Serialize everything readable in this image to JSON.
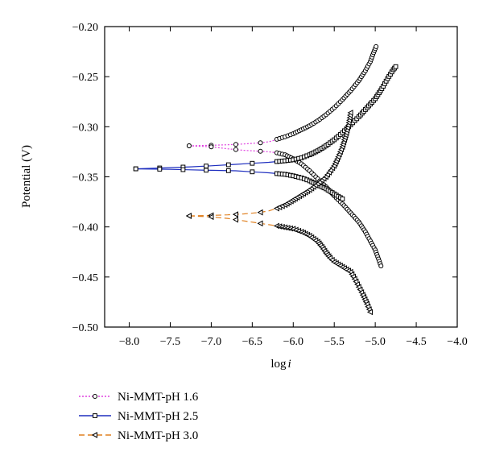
{
  "chart_data": {
    "type": "scatter",
    "title": "",
    "xlabel": "log i",
    "ylabel": "Potential (V)",
    "xlim": [
      -8.3,
      -4.0
    ],
    "ylim": [
      -0.5,
      -0.2
    ],
    "xticks": [
      "−8.0",
      "−7.5",
      "−7.0",
      "−6.5",
      "−6.0",
      "−5.5",
      "−5.0",
      "−4.5",
      "−4.0"
    ],
    "xtick_values": [
      -8.0,
      -7.5,
      -7.0,
      -6.5,
      -6.0,
      -5.5,
      -5.0,
      -4.5,
      -4.0
    ],
    "yticks": [
      "−0.20",
      "−0.25",
      "−0.30",
      "−0.35",
      "−0.40",
      "−0.45",
      "−0.50"
    ],
    "ytick_values": [
      -0.2,
      -0.25,
      -0.3,
      -0.35,
      -0.4,
      -0.45,
      -0.5
    ],
    "grid": false,
    "legend_position": "bottom-left, below plot",
    "series": [
      {
        "name": "Ni-MMT-pH 1.6",
        "color": "#e040e0",
        "line_style": "dotted",
        "marker": "circle",
        "corrosion_point": [
          -7.27,
          -0.319
        ],
        "anodic": [
          [
            -7.27,
            -0.319
          ],
          [
            -7.0,
            -0.3185
          ],
          [
            -6.8,
            -0.318
          ],
          [
            -6.6,
            -0.3172
          ],
          [
            -6.4,
            -0.316
          ],
          [
            -6.3,
            -0.315
          ],
          [
            -6.25,
            -0.314
          ],
          [
            -6.2,
            -0.3125
          ],
          [
            -6.1,
            -0.31
          ],
          [
            -6.0,
            -0.307
          ],
          [
            -5.9,
            -0.303
          ],
          [
            -5.8,
            -0.299
          ],
          [
            -5.7,
            -0.294
          ],
          [
            -5.6,
            -0.288
          ],
          [
            -5.5,
            -0.281
          ],
          [
            -5.4,
            -0.273
          ],
          [
            -5.3,
            -0.264
          ],
          [
            -5.2,
            -0.254
          ],
          [
            -5.12,
            -0.244
          ],
          [
            -5.06,
            -0.235
          ],
          [
            -5.02,
            -0.226
          ],
          [
            -4.99,
            -0.22
          ]
        ],
        "cathodic": [
          [
            -7.27,
            -0.319
          ],
          [
            -7.0,
            -0.32
          ],
          [
            -6.8,
            -0.322
          ],
          [
            -6.6,
            -0.3235
          ],
          [
            -6.4,
            -0.3245
          ],
          [
            -6.3,
            -0.325
          ],
          [
            -6.2,
            -0.326
          ],
          [
            -6.1,
            -0.328
          ],
          [
            -6.0,
            -0.332
          ],
          [
            -5.9,
            -0.337
          ],
          [
            -5.8,
            -0.344
          ],
          [
            -5.7,
            -0.352
          ],
          [
            -5.6,
            -0.36
          ],
          [
            -5.5,
            -0.369
          ],
          [
            -5.4,
            -0.377
          ],
          [
            -5.3,
            -0.386
          ],
          [
            -5.2,
            -0.395
          ],
          [
            -5.12,
            -0.405
          ],
          [
            -5.06,
            -0.414
          ],
          [
            -5.0,
            -0.423
          ],
          [
            -4.96,
            -0.432
          ],
          [
            -4.93,
            -0.439
          ]
        ]
      },
      {
        "name": "Ni-MMT-pH 2.5",
        "color": "#1f2fbf",
        "line_style": "solid",
        "marker": "square",
        "corrosion_point": [
          -7.92,
          -0.342
        ],
        "anodic": [
          [
            -7.92,
            -0.342
          ],
          [
            -7.5,
            -0.3408
          ],
          [
            -7.25,
            -0.34
          ],
          [
            -7.0,
            -0.339
          ],
          [
            -6.7,
            -0.3375
          ],
          [
            -6.5,
            -0.3365
          ],
          [
            -6.3,
            -0.3355
          ],
          [
            -6.1,
            -0.334
          ],
          [
            -6.0,
            -0.333
          ],
          [
            -5.9,
            -0.331
          ],
          [
            -5.8,
            -0.328
          ],
          [
            -5.7,
            -0.324
          ],
          [
            -5.6,
            -0.319
          ],
          [
            -5.5,
            -0.313
          ],
          [
            -5.4,
            -0.306
          ],
          [
            -5.3,
            -0.298
          ],
          [
            -5.2,
            -0.29
          ],
          [
            -5.1,
            -0.281
          ],
          [
            -5.0,
            -0.272
          ],
          [
            -4.92,
            -0.262
          ],
          [
            -4.85,
            -0.252
          ],
          [
            -4.78,
            -0.243
          ],
          [
            -4.75,
            -0.24
          ]
        ],
        "cathodic": [
          [
            -7.92,
            -0.342
          ],
          [
            -7.5,
            -0.3425
          ],
          [
            -7.25,
            -0.343
          ],
          [
            -7.0,
            -0.3435
          ],
          [
            -6.7,
            -0.344
          ],
          [
            -6.5,
            -0.345
          ],
          [
            -6.3,
            -0.346
          ],
          [
            -6.1,
            -0.3475
          ],
          [
            -6.0,
            -0.349
          ],
          [
            -5.9,
            -0.351
          ],
          [
            -5.8,
            -0.354
          ],
          [
            -5.7,
            -0.358
          ],
          [
            -5.6,
            -0.362
          ],
          [
            -5.5,
            -0.367
          ],
          [
            -5.4,
            -0.372
          ]
        ]
      },
      {
        "name": "Ni-MMT-pH 3.0",
        "color": "#e08020",
        "line_style": "dashed",
        "marker": "triangle-left",
        "corrosion_point": [
          -7.27,
          -0.389
        ],
        "anodic": [
          [
            -7.27,
            -0.389
          ],
          [
            -7.0,
            -0.3885
          ],
          [
            -6.8,
            -0.388
          ],
          [
            -6.6,
            -0.387
          ],
          [
            -6.4,
            -0.3855
          ],
          [
            -6.3,
            -0.384
          ],
          [
            -6.2,
            -0.3815
          ],
          [
            -6.1,
            -0.378
          ],
          [
            -6.0,
            -0.373
          ],
          [
            -5.9,
            -0.368
          ],
          [
            -5.8,
            -0.363
          ],
          [
            -5.7,
            -0.357
          ],
          [
            -5.6,
            -0.35
          ],
          [
            -5.5,
            -0.339
          ],
          [
            -5.45,
            -0.33
          ],
          [
            -5.4,
            -0.32
          ],
          [
            -5.35,
            -0.306
          ],
          [
            -5.32,
            -0.296
          ],
          [
            -5.3,
            -0.286
          ]
        ],
        "cathodic": [
          [
            -7.27,
            -0.389
          ],
          [
            -7.0,
            -0.39
          ],
          [
            -6.8,
            -0.3915
          ],
          [
            -6.6,
            -0.394
          ],
          [
            -6.4,
            -0.3965
          ],
          [
            -6.2,
            -0.399
          ],
          [
            -6.0,
            -0.402
          ],
          [
            -5.9,
            -0.405
          ],
          [
            -5.8,
            -0.409
          ],
          [
            -5.7,
            -0.415
          ],
          [
            -5.65,
            -0.42
          ],
          [
            -5.6,
            -0.426
          ],
          [
            -5.55,
            -0.431
          ],
          [
            -5.5,
            -0.435
          ],
          [
            -5.4,
            -0.44
          ],
          [
            -5.3,
            -0.445
          ],
          [
            -5.25,
            -0.452
          ],
          [
            -5.2,
            -0.46
          ],
          [
            -5.15,
            -0.468
          ],
          [
            -5.1,
            -0.477
          ],
          [
            -5.06,
            -0.485
          ]
        ]
      }
    ]
  }
}
